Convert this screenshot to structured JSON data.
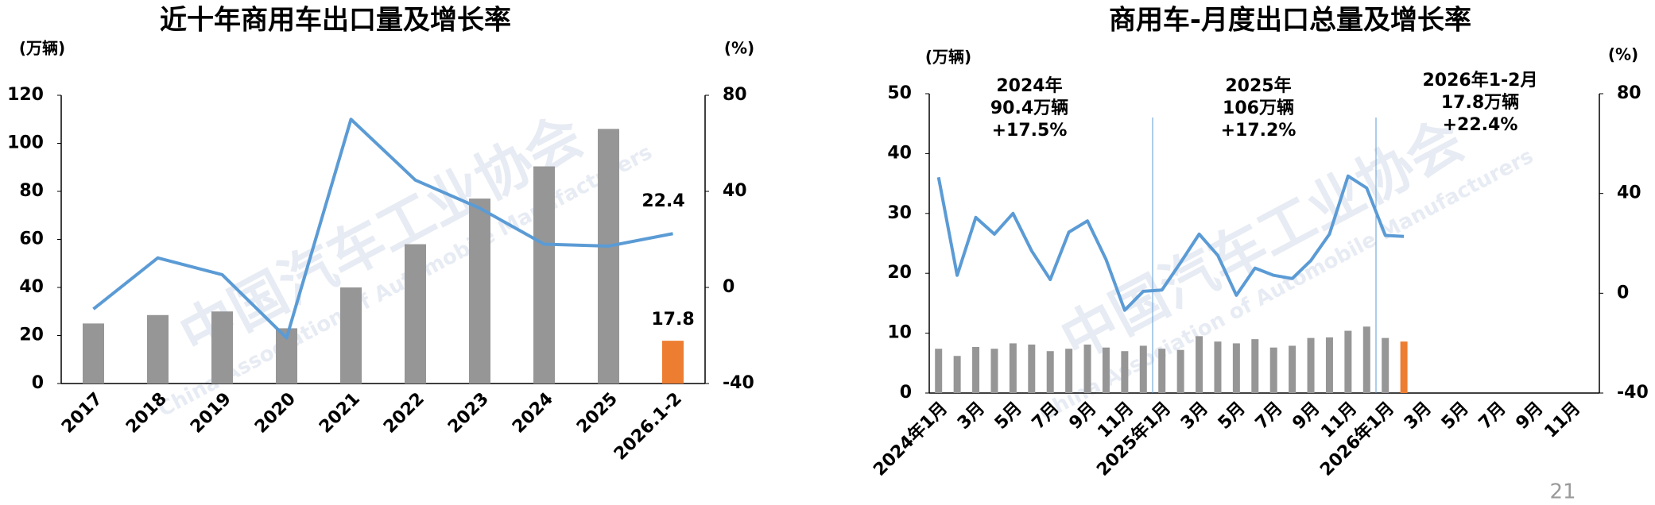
{
  "chart_data": [
    {
      "type": "bar_line",
      "title": "近十年商用车出口量及增长率",
      "y_label": "(万辆)",
      "y2_label": "(%)",
      "watermark": [
        "中国汽车工业协会",
        "China Association of Automobile Manufacturers"
      ],
      "categories": [
        "2017",
        "2018",
        "2019",
        "2020",
        "2021",
        "2022",
        "2023",
        "2024",
        "2025",
        "2026.1-2"
      ],
      "series": [
        {
          "type": "bar",
          "colors": [
            "#969696",
            "#969696",
            "#969696",
            "#969696",
            "#969696",
            "#969696",
            "#969696",
            "#969696",
            "#969696",
            "#ed7d31"
          ],
          "values": [
            25,
            28.5,
            30,
            23,
            40,
            58,
            77,
            90.4,
            106,
            17.8
          ]
        },
        {
          "type": "line",
          "axis": "y2",
          "color": "#5b9bd5",
          "values": [
            -9,
            12.3,
            5.3,
            -21,
            70,
            44.7,
            33,
            18,
            17.2,
            22.4
          ]
        }
      ],
      "ylim": [
        0,
        120
      ],
      "yticks": [
        0,
        20,
        40,
        60,
        80,
        100,
        120
      ],
      "y2lim": [
        -40,
        80
      ],
      "y2ticks": [
        -40,
        0,
        40,
        80
      ]
    },
    {
      "type": "bar_line",
      "title": "商用车-月度出口总量及增长率",
      "y_label": "(万辆)",
      "y2_label": "(%)",
      "watermark": [
        "中国汽车工业协会",
        "China Association of Automobile Manufacturers"
      ],
      "categories": [
        "2024年1月",
        null,
        "3月",
        null,
        "5月",
        null,
        "7月",
        null,
        "9月",
        null,
        "11月",
        null,
        "2025年1月",
        null,
        "3月",
        null,
        "5月",
        null,
        "7月",
        null,
        "9月",
        null,
        "11月",
        null,
        "2026年1月",
        null,
        "3月",
        null,
        "5月",
        null,
        "7月",
        null,
        "9月",
        null,
        "11月",
        null
      ],
      "series": [
        {
          "type": "bar",
          "colors": [
            "#969696",
            "#969696",
            "#969696",
            "#969696",
            "#969696",
            "#969696",
            "#969696",
            "#969696",
            "#969696",
            "#969696",
            "#969696",
            "#969696",
            "#969696",
            "#969696",
            "#969696",
            "#969696",
            "#969696",
            "#969696",
            "#969696",
            "#969696",
            "#969696",
            "#969696",
            "#969696",
            "#969696",
            "#969696",
            "#ed7d31",
            null,
            null,
            null,
            null,
            null,
            null,
            null,
            null,
            null,
            null
          ],
          "values": [
            7.4,
            6.2,
            7.7,
            7.4,
            8.3,
            8.1,
            7.0,
            7.4,
            8.1,
            7.6,
            7.0,
            7.9,
            7.4,
            7.2,
            9.5,
            8.6,
            8.3,
            9.0,
            7.6,
            7.9,
            9.2,
            9.3,
            10.4,
            11.1,
            9.2,
            8.6,
            null,
            null,
            null,
            null,
            null,
            null,
            null,
            null,
            null,
            null
          ]
        },
        {
          "type": "line",
          "axis": "y2",
          "color": "#5b9bd5",
          "values": [
            46.5,
            7.2,
            30.4,
            23.7,
            32,
            17,
            5.5,
            24.5,
            29,
            13.5,
            -6.8,
            0.8,
            1.3,
            12.3,
            23.7,
            15.2,
            -0.8,
            10.1,
            7.2,
            5.9,
            13.1,
            23.7,
            47,
            42.2,
            23.2,
            22.8,
            null,
            null,
            null,
            null,
            null,
            null,
            null,
            null,
            null,
            null
          ]
        }
      ],
      "ylim": [
        0,
        50
      ],
      "yticks": [
        0,
        10,
        20,
        30,
        40,
        50
      ],
      "y2lim": [
        -40,
        80
      ],
      "y2ticks": [
        -40,
        0,
        40,
        80
      ],
      "annotations": [
        [
          "2024年",
          "90.4万辆",
          "+17.5%"
        ],
        [
          "2025年",
          "106万辆",
          "+17.2%"
        ],
        [
          "2026年1-2月",
          "17.8万辆",
          "+22.4%"
        ]
      ]
    }
  ],
  "page_number": "21"
}
